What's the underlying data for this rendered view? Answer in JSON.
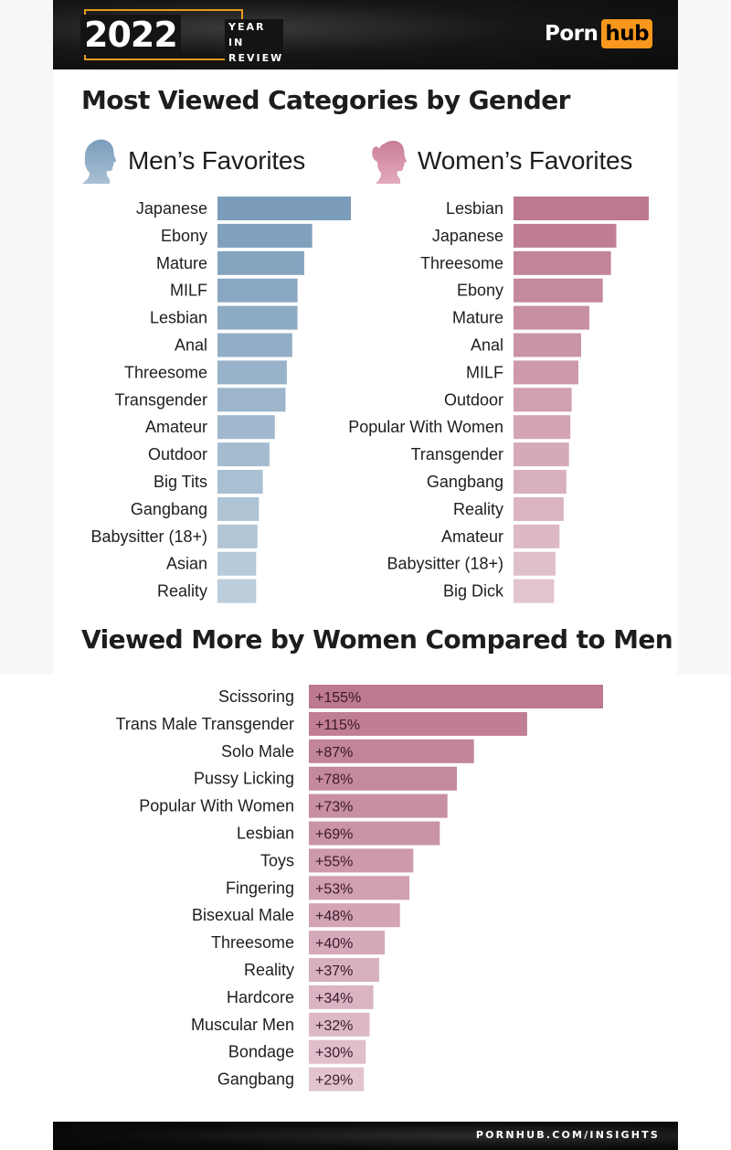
{
  "header": {
    "year": "2022",
    "year_in_review": "YEAR IN REVIEW",
    "logo_left": "Porn",
    "logo_right": "hub",
    "accent_color": "#f7971d"
  },
  "footer": {
    "url": "PORNHUB.COM/INSIGHTS"
  },
  "chart_data": [
    {
      "type": "bar",
      "orientation": "horizontal",
      "section_title": "Most Viewed Categories by Gender",
      "title": "Men's Favorites",
      "display_title": "Men’s Favorites",
      "icon": "male-head-silhouette-icon",
      "value_unit": "relative bar length (top = 100)",
      "categories": [
        "Japanese",
        "Ebony",
        "Mature",
        "MILF",
        "Lesbian",
        "Anal",
        "Threesome",
        "Transgender",
        "Amateur",
        "Outdoor",
        "Big Tits",
        "Gangbang",
        "Babysitter (18+)",
        "Asian",
        "Reality"
      ],
      "values": [
        100,
        71,
        65,
        60,
        60,
        56,
        52,
        51,
        43,
        39,
        34,
        31,
        30,
        29,
        29
      ],
      "color_top": "#7b9dbb",
      "color_bottom": "#bccddb"
    },
    {
      "type": "bar",
      "orientation": "horizontal",
      "title": "Women's Favorites",
      "display_title": "Women’s Favorites",
      "icon": "female-head-silhouette-icon",
      "value_unit": "relative bar length (top = 100)",
      "categories": [
        "Lesbian",
        "Japanese",
        "Threesome",
        "Ebony",
        "Mature",
        "Anal",
        "MILF",
        "Outdoor",
        "Popular With Women",
        "Transgender",
        "Gangbang",
        "Reality",
        "Amateur",
        "Babysitter (18+)",
        "Big Dick"
      ],
      "values": [
        100,
        76,
        72,
        66,
        56,
        50,
        48,
        43,
        42,
        41,
        39,
        37,
        34,
        31,
        30
      ],
      "color_top": "#bd7990",
      "color_bottom": "#e2c4cf"
    },
    {
      "type": "bar",
      "orientation": "horizontal",
      "title": "Viewed More by Women Compared to Men",
      "categories": [
        "Scissoring",
        "Trans Male Transgender",
        "Solo Male",
        "Pussy Licking",
        "Popular With Women",
        "Lesbian",
        "Toys",
        "Fingering",
        "Bisexual Male",
        "Threesome",
        "Reality",
        "Hardcore",
        "Muscular Men",
        "Bondage",
        "Gangbang"
      ],
      "values": [
        155,
        115,
        87,
        78,
        73,
        69,
        55,
        53,
        48,
        40,
        37,
        34,
        32,
        30,
        29
      ],
      "value_labels": [
        "+155%",
        "+115%",
        "+87%",
        "+78%",
        "+73%",
        "+69%",
        "+55%",
        "+53%",
        "+48%",
        "+40%",
        "+37%",
        "+34%",
        "+32%",
        "+30%",
        "+29%"
      ],
      "xlabel": "",
      "ylabel": "",
      "xlim": [
        0,
        155
      ],
      "color_top": "#bd7990",
      "color_bottom": "#e2c4cf"
    }
  ]
}
